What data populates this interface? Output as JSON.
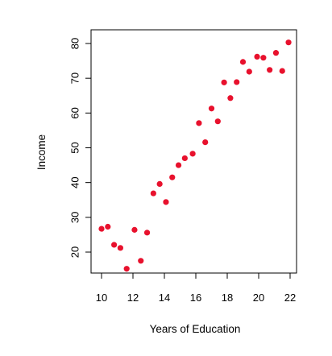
{
  "chart_data": {
    "type": "scatter",
    "title": "",
    "xlabel": "Years of Education",
    "ylabel": "Income",
    "xlim": [
      10,
      22
    ],
    "ylim": [
      15,
      80.5
    ],
    "x_ticks": [
      "10",
      "12",
      "14",
      "16",
      "18",
      "20",
      "22"
    ],
    "y_ticks": [
      "20",
      "30",
      "40",
      "50",
      "60",
      "70",
      "80"
    ],
    "grid": false,
    "legend": "none",
    "point_color": "#e8112d",
    "series": [
      {
        "x": [
          10.0,
          10.4,
          10.8,
          11.2,
          11.6,
          12.1,
          12.5,
          12.9,
          13.3,
          13.7,
          14.1,
          14.5,
          14.9,
          15.3,
          15.8,
          16.2,
          16.6,
          17.0,
          17.4,
          17.8,
          18.2,
          18.6,
          19.0,
          19.4,
          19.9,
          20.3,
          20.7,
          21.1,
          21.5,
          21.9
        ],
        "y": [
          26.7,
          27.3,
          22.1,
          21.2,
          15.2,
          26.4,
          17.5,
          25.6,
          36.9,
          39.6,
          34.4,
          41.5,
          45.0,
          47.0,
          48.3,
          57.1,
          51.6,
          61.3,
          57.6,
          68.8,
          64.3,
          68.9,
          74.7,
          71.9,
          76.2,
          75.9,
          72.4,
          77.3,
          72.1,
          80.3
        ]
      }
    ]
  }
}
